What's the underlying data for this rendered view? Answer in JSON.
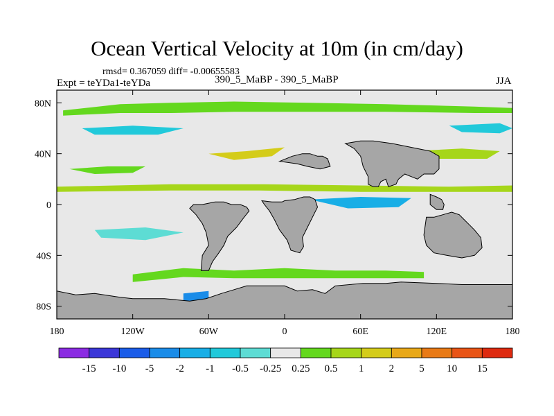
{
  "chart_data": {
    "type": "heatmap",
    "title": "Ocean Vertical Velocity at 10m (in cm/day)",
    "stats_label": "rmsd= 0.367059 diff= -0.00655583",
    "experiment_label": "Expt = teYDa1-teYDa",
    "cases_label": "390_5_MaBP - 390_5_MaBP",
    "season_label": "JJA",
    "units": "cm/day",
    "x_axis": {
      "range": [
        -180,
        180
      ],
      "ticks": [
        {
          "value": -180,
          "label": "180"
        },
        {
          "value": -120,
          "label": "120W"
        },
        {
          "value": -60,
          "label": "60W"
        },
        {
          "value": 0,
          "label": "0"
        },
        {
          "value": 60,
          "label": "60E"
        },
        {
          "value": 120,
          "label": "120E"
        },
        {
          "value": 180,
          "label": "180"
        }
      ]
    },
    "y_axis": {
      "range": [
        -90,
        90
      ],
      "ticks": [
        {
          "value": 80,
          "label": "80N"
        },
        {
          "value": 40,
          "label": "40N"
        },
        {
          "value": 0,
          "label": "0"
        },
        {
          "value": -40,
          "label": "40S"
        },
        {
          "value": -80,
          "label": "80S"
        }
      ]
    },
    "colorbar": {
      "labels": [
        "-15",
        "-10",
        "-5",
        "-2",
        "-1",
        "-0.5",
        "-0.25",
        "0.25",
        "0.5",
        "1",
        "2",
        "5",
        "10",
        "15"
      ],
      "colors": [
        "#8b2be2",
        "#3b37d8",
        "#1a5ce8",
        "#1a8ce8",
        "#18aee6",
        "#21c9da",
        "#5ddcd4",
        "#e8e8e8",
        "#64d81e",
        "#a6d61a",
        "#d4cc1a",
        "#e8a818",
        "#e87a16",
        "#e85416",
        "#de2a10"
      ]
    },
    "land_color": "#a6a6a6",
    "ocean_neutral_color": "#e8e8e8",
    "land_regions": [
      {
        "name": "antarctica",
        "points": [
          [
            -180,
            -90
          ],
          [
            180,
            -90
          ],
          [
            180,
            -63
          ],
          [
            168,
            -63
          ],
          [
            150,
            -63
          ],
          [
            140,
            -63
          ],
          [
            120,
            -62
          ],
          [
            92,
            -61
          ],
          [
            80,
            -62
          ],
          [
            62,
            -62
          ],
          [
            40,
            -64
          ],
          [
            32,
            -70
          ],
          [
            22,
            -67
          ],
          [
            10,
            -68
          ],
          [
            0,
            -64
          ],
          [
            -30,
            -64
          ],
          [
            -40,
            -67
          ],
          [
            -50,
            -70
          ],
          [
            -62,
            -74
          ],
          [
            -75,
            -76
          ],
          [
            -95,
            -74
          ],
          [
            -120,
            -74
          ],
          [
            -130,
            -73
          ],
          [
            -150,
            -70
          ],
          [
            -165,
            -71
          ],
          [
            -180,
            -68
          ]
        ]
      },
      {
        "name": "south-america",
        "points": [
          [
            -42,
            0
          ],
          [
            -35,
            0
          ],
          [
            -30,
            -2
          ],
          [
            -28,
            -5
          ],
          [
            -32,
            -10
          ],
          [
            -38,
            -18
          ],
          [
            -45,
            -25
          ],
          [
            -48,
            -32
          ],
          [
            -52,
            -38
          ],
          [
            -57,
            -45
          ],
          [
            -60,
            -52
          ],
          [
            -66,
            -52
          ],
          [
            -65,
            -40
          ],
          [
            -60,
            -32
          ],
          [
            -62,
            -22
          ],
          [
            -65,
            -15
          ],
          [
            -70,
            -8
          ],
          [
            -75,
            -3
          ],
          [
            -72,
            0
          ],
          [
            -65,
            0
          ],
          [
            -55,
            2
          ],
          [
            -48,
            2
          ]
        ]
      },
      {
        "name": "africa",
        "points": [
          [
            8,
            4
          ],
          [
            15,
            6
          ],
          [
            20,
            6
          ],
          [
            24,
            4
          ],
          [
            26,
            -2
          ],
          [
            22,
            -10
          ],
          [
            18,
            -18
          ],
          [
            14,
            -26
          ],
          [
            15,
            -33
          ],
          [
            12,
            -38
          ],
          [
            5,
            -36
          ],
          [
            2,
            -28
          ],
          [
            -4,
            -20
          ],
          [
            -8,
            -12
          ],
          [
            -12,
            -5
          ],
          [
            -16,
            0
          ],
          [
            -18,
            3
          ],
          [
            -10,
            2
          ],
          [
            -2,
            2
          ],
          [
            0,
            3
          ]
        ]
      },
      {
        "name": "eurasia-east",
        "points": [
          [
            48,
            48
          ],
          [
            55,
            44
          ],
          [
            60,
            38
          ],
          [
            62,
            30
          ],
          [
            66,
            22
          ],
          [
            66,
            16
          ],
          [
            70,
            14
          ],
          [
            74,
            14
          ],
          [
            76,
            18
          ],
          [
            80,
            20
          ],
          [
            82,
            14
          ],
          [
            88,
            16
          ],
          [
            90,
            20
          ],
          [
            95,
            24
          ],
          [
            100,
            22
          ],
          [
            105,
            20
          ],
          [
            110,
            24
          ],
          [
            118,
            24
          ],
          [
            122,
            28
          ],
          [
            122,
            38
          ],
          [
            115,
            42
          ],
          [
            100,
            45
          ],
          [
            85,
            48
          ],
          [
            70,
            50
          ],
          [
            60,
            50
          ]
        ]
      },
      {
        "name": "europe-west",
        "points": [
          [
            -4,
            34
          ],
          [
            6,
            38
          ],
          [
            14,
            40
          ],
          [
            20,
            40
          ],
          [
            26,
            38
          ],
          [
            30,
            38
          ],
          [
            34,
            36
          ],
          [
            36,
            30
          ],
          [
            28,
            28
          ],
          [
            18,
            30
          ],
          [
            10,
            32
          ]
        ]
      },
      {
        "name": "australia",
        "points": [
          [
            112,
            -10
          ],
          [
            118,
            -10
          ],
          [
            125,
            -8
          ],
          [
            132,
            -6
          ],
          [
            138,
            -8
          ],
          [
            142,
            -12
          ],
          [
            146,
            -16
          ],
          [
            150,
            -20
          ],
          [
            155,
            -26
          ],
          [
            156,
            -34
          ],
          [
            150,
            -40
          ],
          [
            140,
            -42
          ],
          [
            128,
            -40
          ],
          [
            118,
            -38
          ],
          [
            112,
            -32
          ],
          [
            110,
            -24
          ]
        ]
      },
      {
        "name": "east-asia",
        "points": [
          [
            115,
            8
          ],
          [
            120,
            6
          ],
          [
            124,
            4
          ],
          [
            126,
            0
          ],
          [
            125,
            -4
          ],
          [
            120,
            -4
          ],
          [
            115,
            0
          ]
        ]
      }
    ],
    "positive_bands": [
      {
        "polygon": [
          [
            -175,
            74
          ],
          [
            -130,
            79
          ],
          [
            -90,
            80
          ],
          [
            -40,
            81
          ],
          [
            20,
            80
          ],
          [
            80,
            79
          ],
          [
            150,
            77
          ],
          [
            180,
            76
          ],
          [
            180,
            72
          ],
          [
            150,
            72
          ],
          [
            80,
            73
          ],
          [
            20,
            73
          ],
          [
            -40,
            73
          ],
          [
            -90,
            72
          ],
          [
            -130,
            72
          ],
          [
            -175,
            70
          ]
        ]
      },
      {
        "polygon": [
          [
            -180,
            14
          ],
          [
            -90,
            16
          ],
          [
            -20,
            16
          ],
          [
            60,
            15
          ],
          [
            130,
            14
          ],
          [
            180,
            15
          ],
          [
            180,
            10
          ],
          [
            130,
            10
          ],
          [
            60,
            10
          ],
          [
            -20,
            11
          ],
          [
            -90,
            11
          ],
          [
            -180,
            10
          ]
        ]
      },
      {
        "polygon": [
          [
            -120,
            -55
          ],
          [
            -80,
            -50
          ],
          [
            -40,
            -52
          ],
          [
            0,
            -50
          ],
          [
            40,
            -52
          ],
          [
            80,
            -52
          ],
          [
            110,
            -53
          ],
          [
            110,
            -58
          ],
          [
            80,
            -58
          ],
          [
            40,
            -58
          ],
          [
            0,
            -58
          ],
          [
            -40,
            -58
          ],
          [
            -80,
            -57
          ],
          [
            -120,
            -61
          ]
        ]
      },
      {
        "polygon": [
          [
            -60,
            40
          ],
          [
            -30,
            42
          ],
          [
            0,
            45
          ],
          [
            -10,
            38
          ],
          [
            -40,
            35
          ]
        ]
      },
      {
        "polygon": [
          [
            60,
            40
          ],
          [
            100,
            42
          ],
          [
            140,
            44
          ],
          [
            170,
            42
          ],
          [
            160,
            36
          ],
          [
            110,
            36
          ],
          [
            70,
            35
          ]
        ]
      },
      {
        "polygon": [
          [
            -170,
            28
          ],
          [
            -140,
            30
          ],
          [
            -110,
            30
          ],
          [
            -120,
            25
          ],
          [
            -150,
            24
          ]
        ]
      }
    ],
    "negative_bands": [
      {
        "polygon": [
          [
            -160,
            60
          ],
          [
            -120,
            62
          ],
          [
            -80,
            60
          ],
          [
            -100,
            55
          ],
          [
            -150,
            55
          ]
        ]
      },
      {
        "polygon": [
          [
            20,
            4
          ],
          [
            60,
            6
          ],
          [
            100,
            5
          ],
          [
            90,
            -2
          ],
          [
            50,
            -3
          ]
        ]
      },
      {
        "polygon": [
          [
            -150,
            -20
          ],
          [
            -110,
            -18
          ],
          [
            -80,
            -22
          ],
          [
            -110,
            -28
          ],
          [
            -145,
            -26
          ]
        ]
      },
      {
        "polygon": [
          [
            130,
            62
          ],
          [
            170,
            64
          ],
          [
            180,
            60
          ],
          [
            170,
            56
          ],
          [
            140,
            57
          ]
        ]
      },
      {
        "polygon": [
          [
            -20,
            -72
          ],
          [
            -5,
            -70
          ],
          [
            0,
            -76
          ],
          [
            -12,
            -78
          ]
        ]
      },
      {
        "polygon": [
          [
            -80,
            -70
          ],
          [
            -60,
            -68
          ],
          [
            -60,
            -75
          ],
          [
            -80,
            -76
          ]
        ]
      }
    ]
  }
}
